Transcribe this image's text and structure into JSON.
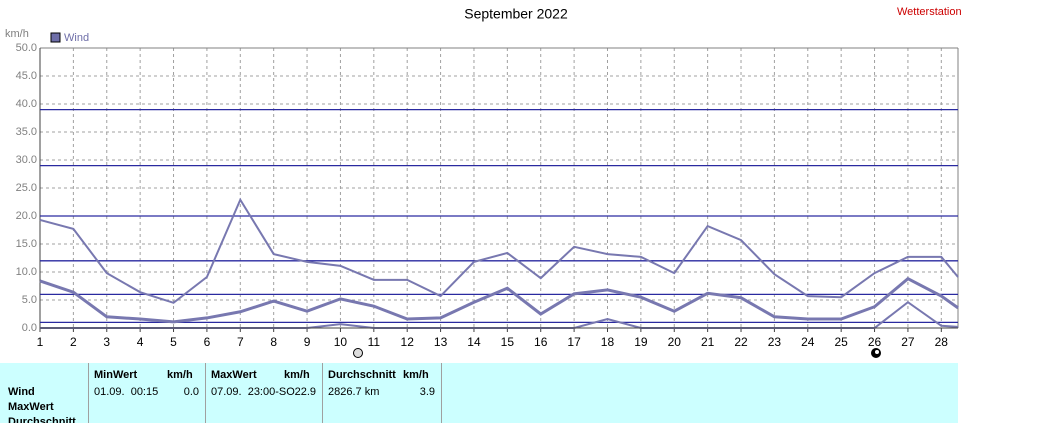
{
  "chart_data": {
    "type": "line",
    "title": "September 2022",
    "source": "Wetterstation",
    "y_label": "km/h",
    "legend": {
      "label": "Wind",
      "color": "#6e6ea8"
    },
    "x": [
      1,
      2,
      3,
      4,
      5,
      6,
      7,
      8,
      9,
      10,
      11,
      12,
      13,
      14,
      15,
      16,
      17,
      18,
      19,
      20,
      21,
      22,
      23,
      24,
      25,
      26,
      27,
      28,
      28.5
    ],
    "series": [
      {
        "color": "#7878b0",
        "width": 2,
        "values": [
          0,
          0,
          0,
          0,
          0,
          0,
          0,
          0,
          0,
          0.7,
          0,
          0,
          0,
          0,
          0,
          0,
          0,
          1.6,
          0,
          0,
          0,
          0,
          0,
          0,
          0,
          0,
          4.6,
          0.4,
          0.2
        ]
      },
      {
        "color": "#7878b0",
        "width": 2,
        "values": [
          19.3,
          17.7,
          9.8,
          6.4,
          4.5,
          9.1,
          22.9,
          13.2,
          11.8,
          11.1,
          8.6,
          8.6,
          5.7,
          11.8,
          13.4,
          8.9,
          14.5,
          13.2,
          12.7,
          9.8,
          18.2,
          15.7,
          9.6,
          5.7,
          5.5,
          9.8,
          12.7,
          12.7,
          9.1
        ]
      },
      {
        "color": "#7878b0",
        "width": 3,
        "values": [
          8.4,
          6.4,
          2.0,
          1.6,
          1.1,
          1.8,
          2.9,
          4.8,
          3.0,
          5.2,
          3.9,
          1.6,
          1.8,
          4.6,
          7.1,
          2.5,
          6.1,
          6.8,
          5.5,
          3.0,
          6.2,
          5.4,
          2.0,
          1.6,
          1.6,
          3.8,
          8.8,
          5.7,
          3.6
        ]
      }
    ],
    "reference_lines": {
      "color": "#2a2aa0",
      "values": [
        1,
        6,
        12,
        20,
        29,
        39
      ]
    },
    "xlim": [
      1,
      28.5
    ],
    "xticks": [
      1,
      2,
      3,
      4,
      5,
      6,
      7,
      8,
      9,
      10,
      11,
      12,
      13,
      14,
      15,
      16,
      17,
      18,
      19,
      20,
      21,
      22,
      23,
      24,
      25,
      26,
      27,
      28
    ],
    "ylim": [
      0,
      50
    ],
    "yticks": [
      {
        "value": 0,
        "label": "0.0"
      },
      {
        "value": 5,
        "label": "5.0"
      },
      {
        "value": 10,
        "label": "10.0"
      },
      {
        "value": 15,
        "label": "15.0"
      },
      {
        "value": 20,
        "label": "20.0"
      },
      {
        "value": 25,
        "label": "25.0"
      },
      {
        "value": 30,
        "label": "30.0"
      },
      {
        "value": 35,
        "label": "35.0"
      },
      {
        "value": 40,
        "label": "40.0"
      },
      {
        "value": 45,
        "label": "45.0"
      },
      {
        "value": 50,
        "label": "50.0"
      }
    ],
    "grid": true
  },
  "table": {
    "columns": [
      {
        "title": "MinWert",
        "unit": "km/h"
      },
      {
        "title": "MaxWert",
        "unit": "km/h"
      },
      {
        "title": "Durchschnitt",
        "unit": "km/h"
      }
    ],
    "rows": [
      {
        "label": "Wind",
        "cells": [
          [
            "01.09.  00:15",
            "0.0"
          ],
          [
            "07.09.  23:00-SO",
            "22.9"
          ],
          [
            "2826.7 km",
            "3.9"
          ]
        ]
      },
      {
        "label": "MaxWert"
      },
      {
        "label": "Durchschnitt"
      }
    ]
  }
}
